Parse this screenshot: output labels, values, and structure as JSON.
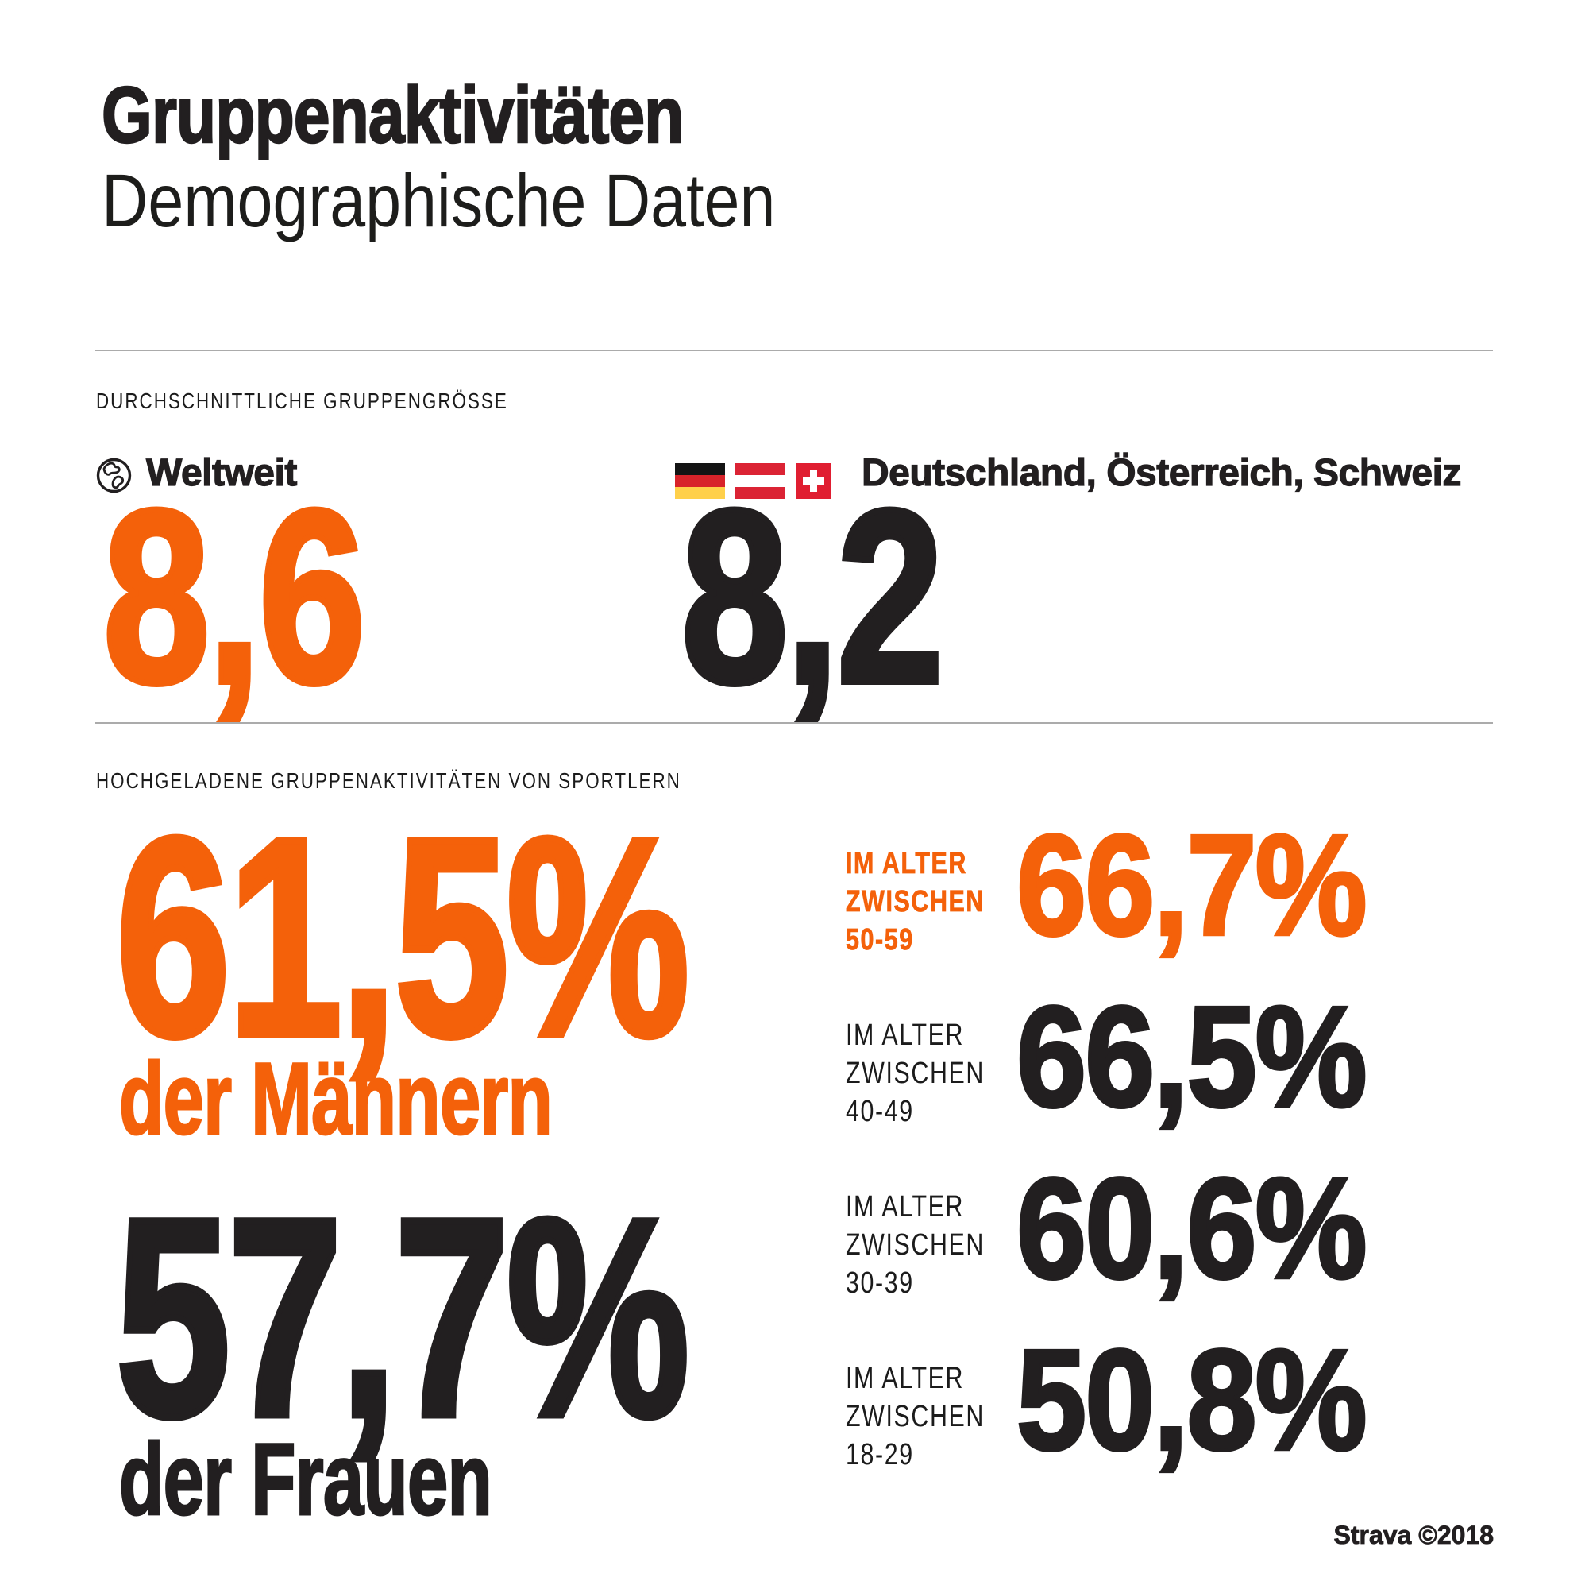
{
  "colors": {
    "orange": "#F4610A",
    "ink": "#221F20",
    "divider": "#ABABAB",
    "flag_germany": [
      "#141414",
      "#D8232A",
      "#FFD04A"
    ],
    "flag_austria": [
      "#DB2334",
      "#FFFFFF",
      "#DB2334"
    ],
    "flag_switzerland": [
      "#E01E31",
      "#FFFFFF"
    ]
  },
  "header": {
    "title": "Gruppenaktivitäten",
    "subtitle": "Demographische Daten"
  },
  "avg_group_size": {
    "section_label": "DURCHSCHNITTLICHE GRUPPENGRÖSSE",
    "worldwide": {
      "icon": "globe-icon",
      "label": "Weltweit",
      "value": "8,6"
    },
    "dach": {
      "label": "Deutschland, Österreich, Schweiz",
      "value": "8,2"
    }
  },
  "uploads": {
    "section_label": "HOCHGELADENE GRUPPENAKTIVITÄTEN VON SPORTLERN",
    "men": {
      "value": "61,5%",
      "label": "der Männern"
    },
    "women": {
      "value": "57,7%",
      "label": "der Frauen"
    },
    "age_groups": [
      {
        "lines": [
          "IM ALTER",
          "ZWISCHEN",
          "50-59"
        ],
        "value": "66,7%",
        "highlight": true
      },
      {
        "lines": [
          "IM ALTER",
          "ZWISCHEN",
          "40-49"
        ],
        "value": "66,5%",
        "highlight": false
      },
      {
        "lines": [
          "IM ALTER",
          "ZWISCHEN",
          "30-39"
        ],
        "value": "60,6%",
        "highlight": false
      },
      {
        "lines": [
          "IM ALTER",
          "ZWISCHEN",
          "18-29"
        ],
        "value": "50,8%",
        "highlight": false
      }
    ]
  },
  "footer": {
    "credit": "Strava ©2018"
  },
  "chart_data": {
    "type": "table",
    "title": "Gruppenaktivitäten – Demographische Daten",
    "sections": [
      {
        "label": "Durchschnittliche Gruppengrösse",
        "rows": [
          {
            "category": "Weltweit",
            "value": 8.6
          },
          {
            "category": "Deutschland, Österreich, Schweiz",
            "value": 8.2
          }
        ]
      },
      {
        "label": "Hochgeladene Gruppenaktivitäten von Sportlern (%)",
        "rows": [
          {
            "category": "der Männern",
            "value": 61.5
          },
          {
            "category": "der Frauen",
            "value": 57.7
          },
          {
            "category": "Im Alter zwischen 50-59",
            "value": 66.7
          },
          {
            "category": "Im Alter zwischen 40-49",
            "value": 66.5
          },
          {
            "category": "Im Alter zwischen 30-39",
            "value": 60.6
          },
          {
            "category": "Im Alter zwischen 18-29",
            "value": 50.8
          }
        ]
      }
    ],
    "source": "Strava ©2018",
    "legend_position": "none",
    "grid": false
  }
}
